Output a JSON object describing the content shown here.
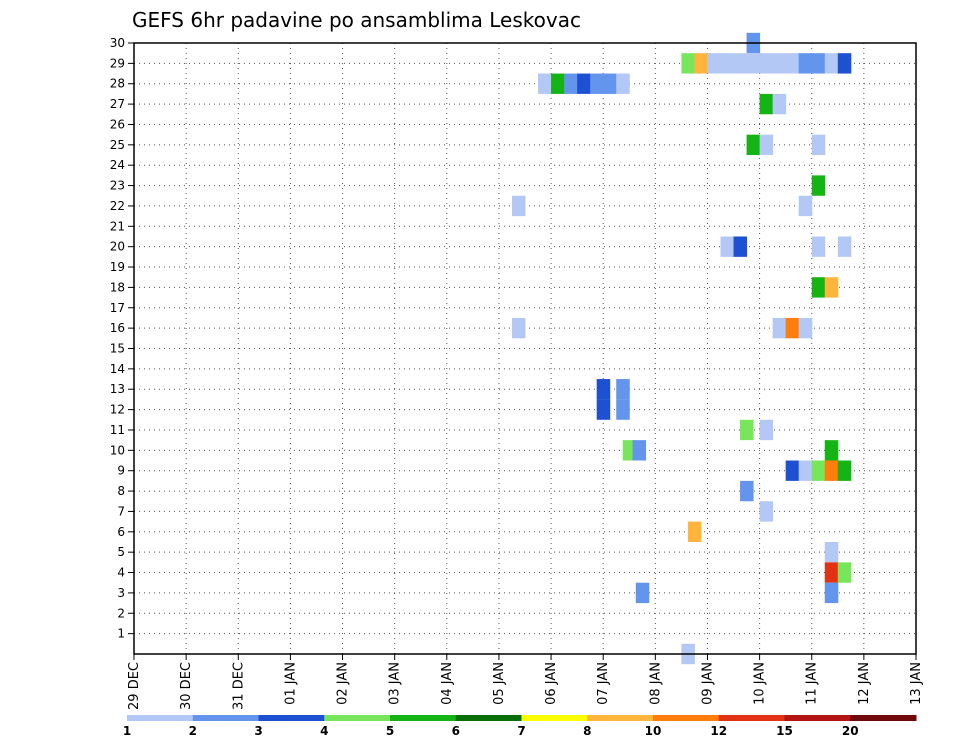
{
  "chart_data": {
    "type": "heatmap",
    "title": "GEFS 6hr padavine po ansamblima Leskovac",
    "xlabel": "",
    "ylabel": "",
    "x_unit": "6-hour step",
    "x_range": [
      0,
      60
    ],
    "x_ticks": [
      "29 DEC",
      "30 DEC",
      "31 DEC",
      "01 JAN",
      "02 JAN",
      "03 JAN",
      "04 JAN",
      "05 JAN",
      "06 JAN",
      "07 JAN",
      "08 JAN",
      "09 JAN",
      "10 JAN",
      "11 JAN",
      "12 JAN",
      "13 JAN"
    ],
    "y_ticks": [
      1,
      2,
      3,
      4,
      5,
      6,
      7,
      8,
      9,
      10,
      11,
      12,
      13,
      14,
      15,
      16,
      17,
      18,
      19,
      20,
      21,
      22,
      23,
      24,
      25,
      26,
      27,
      28,
      29,
      30
    ],
    "y_range": [
      0,
      30
    ],
    "grid": true,
    "legend": {
      "placement": "bottom",
      "levels": [
        "1",
        "2",
        "3",
        "4",
        "5",
        "6",
        "7",
        "8",
        "10",
        "12",
        "15",
        "20"
      ],
      "colors": [
        "#b4c8f5",
        "#6495ed",
        "#1e50d2",
        "#78e65a",
        "#14b414",
        "#0a6e0a",
        "#ffff00",
        "#ffb43c",
        "#ff7d0a",
        "#e13214",
        "#b41414",
        "#6e0a0a"
      ]
    },
    "cells": [
      {
        "x": 47.5,
        "y": 30,
        "c": 1
      },
      {
        "x": 42.5,
        "y": 29,
        "c": 3
      },
      {
        "x": 43.5,
        "y": 29,
        "c": 7
      },
      {
        "x": 44.5,
        "y": 29,
        "c": 0
      },
      {
        "x": 45.5,
        "y": 29,
        "c": 0
      },
      {
        "x": 46.5,
        "y": 29,
        "c": 0
      },
      {
        "x": 47.5,
        "y": 29,
        "c": 0
      },
      {
        "x": 48.5,
        "y": 29,
        "c": 0
      },
      {
        "x": 49.5,
        "y": 29,
        "c": 0
      },
      {
        "x": 50.5,
        "y": 29,
        "c": 0
      },
      {
        "x": 51.5,
        "y": 29,
        "c": 1
      },
      {
        "x": 52.5,
        "y": 29,
        "c": 1
      },
      {
        "x": 53.5,
        "y": 29,
        "c": 0
      },
      {
        "x": 54.5,
        "y": 29,
        "c": 2
      },
      {
        "x": 31.5,
        "y": 28,
        "c": 0
      },
      {
        "x": 32.5,
        "y": 28,
        "c": 4
      },
      {
        "x": 33.5,
        "y": 28,
        "c": 1
      },
      {
        "x": 34.5,
        "y": 28,
        "c": 2
      },
      {
        "x": 35.5,
        "y": 28,
        "c": 1
      },
      {
        "x": 36.5,
        "y": 28,
        "c": 1
      },
      {
        "x": 37.5,
        "y": 28,
        "c": 0
      },
      {
        "x": 48.5,
        "y": 27,
        "c": 4
      },
      {
        "x": 49.5,
        "y": 27,
        "c": 0
      },
      {
        "x": 47.5,
        "y": 25,
        "c": 4
      },
      {
        "x": 48.5,
        "y": 25,
        "c": 0
      },
      {
        "x": 52.5,
        "y": 25,
        "c": 0
      },
      {
        "x": 52.5,
        "y": 23,
        "c": 4
      },
      {
        "x": 29.5,
        "y": 22,
        "c": 0
      },
      {
        "x": 51.5,
        "y": 22,
        "c": 0
      },
      {
        "x": 45.5,
        "y": 20,
        "c": 0
      },
      {
        "x": 46.5,
        "y": 20,
        "c": 2
      },
      {
        "x": 52.5,
        "y": 20,
        "c": 0
      },
      {
        "x": 54.5,
        "y": 20,
        "c": 0
      },
      {
        "x": 52.5,
        "y": 18,
        "c": 4
      },
      {
        "x": 53.5,
        "y": 18,
        "c": 7
      },
      {
        "x": 29.5,
        "y": 16,
        "c": 0
      },
      {
        "x": 49.5,
        "y": 16,
        "c": 0
      },
      {
        "x": 50.5,
        "y": 16,
        "c": 8
      },
      {
        "x": 51.5,
        "y": 16,
        "c": 0
      },
      {
        "x": 36.0,
        "y": 13,
        "c": 2
      },
      {
        "x": 36.0,
        "y": 12,
        "c": 2
      },
      {
        "x": 37.5,
        "y": 13,
        "c": 1
      },
      {
        "x": 37.5,
        "y": 12,
        "c": 1
      },
      {
        "x": 47.0,
        "y": 11,
        "c": 3
      },
      {
        "x": 48.5,
        "y": 11,
        "c": 0
      },
      {
        "x": 38.0,
        "y": 10,
        "c": 3
      },
      {
        "x": 38.75,
        "y": 10,
        "c": 1
      },
      {
        "x": 53.5,
        "y": 10,
        "c": 4
      },
      {
        "x": 50.5,
        "y": 9,
        "c": 2
      },
      {
        "x": 51.5,
        "y": 9,
        "c": 0
      },
      {
        "x": 52.5,
        "y": 9,
        "c": 3
      },
      {
        "x": 53.5,
        "y": 9,
        "c": 8
      },
      {
        "x": 54.5,
        "y": 9,
        "c": 4
      },
      {
        "x": 47.0,
        "y": 8,
        "c": 1
      },
      {
        "x": 48.5,
        "y": 7,
        "c": 0
      },
      {
        "x": 43.0,
        "y": 6,
        "c": 7
      },
      {
        "x": 53.5,
        "y": 5,
        "c": 0
      },
      {
        "x": 53.5,
        "y": 4,
        "c": 9
      },
      {
        "x": 54.5,
        "y": 4,
        "c": 3
      },
      {
        "x": 39.0,
        "y": 3,
        "c": 1
      },
      {
        "x": 53.5,
        "y": 3,
        "c": 1
      },
      {
        "x": 42.5,
        "y": 0,
        "c": 0
      }
    ]
  }
}
